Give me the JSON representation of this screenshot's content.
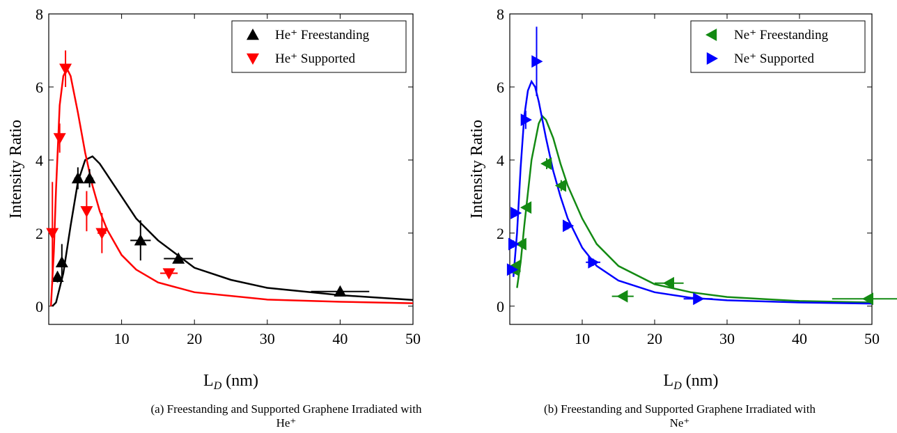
{
  "chart_data": [
    {
      "type": "scatter",
      "caption": "(a) Freestanding and Supported Graphene Irradiated with He⁺",
      "ylabel": "Intensity Ratio",
      "xlabel": {
        "main": "L",
        "sub": "D",
        "unit": "(nm)"
      },
      "xlim": [
        0,
        50
      ],
      "ylim": [
        -0.5,
        8
      ],
      "xticks": [
        10,
        20,
        30,
        40,
        50
      ],
      "yticks": [
        0,
        2,
        4,
        6,
        8
      ],
      "legend": "upper right",
      "series": [
        {
          "name": "He⁺ Freestanding",
          "color": "#000000",
          "marker": "up",
          "x": [
            1.2,
            1.8,
            4,
            5.6,
            12.6,
            17.8,
            40
          ],
          "values": [
            0.8,
            1.2,
            3.5,
            3.5,
            1.8,
            1.3,
            0.4
          ],
          "yerr": [
            0.15,
            0.5,
            0.3,
            0.25,
            0.55,
            0.1,
            0.1
          ],
          "xerr": [
            0.3,
            0.3,
            0.5,
            0.5,
            1.4,
            2,
            4
          ]
        },
        {
          "name": "He⁺ Supported",
          "color": "#ff0000",
          "marker": "down",
          "x": [
            0.5,
            1.5,
            2.3,
            5.2,
            7.3,
            16.5
          ],
          "values": [
            2.0,
            4.6,
            6.5,
            2.6,
            2.0,
            0.9
          ],
          "yerr": [
            1.4,
            0.4,
            0.5,
            0.55,
            0.55,
            0.12
          ],
          "xerr": [
            0.2,
            0.3,
            0.4,
            0.4,
            0.6,
            1.2
          ]
        }
      ],
      "fits": [
        {
          "color": "#000000",
          "x": [
            0.5,
            1,
            2,
            3,
            4,
            5,
            6,
            7,
            8,
            10,
            12,
            15,
            20,
            25,
            30,
            40,
            50
          ],
          "values": [
            0,
            0.1,
            0.9,
            2.2,
            3.4,
            4.0,
            4.1,
            3.9,
            3.6,
            3.0,
            2.4,
            1.8,
            1.05,
            0.72,
            0.5,
            0.3,
            0.17
          ]
        },
        {
          "color": "#ff0000",
          "x": [
            0.3,
            0.7,
            1,
            1.5,
            2,
            2.5,
            3,
            4,
            5,
            6,
            7,
            8,
            10,
            12,
            15,
            20,
            30,
            40,
            50
          ],
          "values": [
            0,
            1.5,
            3.2,
            5.5,
            6.3,
            6.5,
            6.3,
            5.3,
            4.2,
            3.3,
            2.6,
            2.1,
            1.4,
            1.0,
            0.65,
            0.38,
            0.18,
            0.12,
            0.08
          ]
        }
      ]
    },
    {
      "type": "scatter",
      "caption": "(b) Freestanding and Supported Graphene Irradiated with Ne⁺",
      "ylabel": "Intensity Ratio",
      "xlabel": {
        "main": "L",
        "sub": "D",
        "unit": "(nm)"
      },
      "xlim": [
        0,
        50
      ],
      "ylim": [
        -0.5,
        8
      ],
      "xticks": [
        10,
        20,
        30,
        40,
        50
      ],
      "yticks": [
        0,
        2,
        4,
        6,
        8
      ],
      "legend": "upper right",
      "series": [
        {
          "name": "Ne⁺ Freestanding",
          "color": "#138a13",
          "marker": "left",
          "x": [
            0.5,
            0.8,
            1.6,
            2.3,
            5.1,
            7.1,
            15.6,
            22,
            49.5
          ],
          "values": [
            1.0,
            1.1,
            1.7,
            2.7,
            3.9,
            3.3,
            0.27,
            0.63,
            0.2
          ],
          "yerr": [
            0.1,
            0.1,
            0.1,
            0.1,
            0.15,
            0.15,
            0.05,
            0.05,
            0.05
          ],
          "xerr": [
            0.2,
            0.3,
            0.4,
            0.4,
            0.5,
            0.7,
            1.5,
            2,
            5
          ]
        },
        {
          "name": "Ne⁺ Supported",
          "color": "#0000ff",
          "marker": "right",
          "x": [
            0.3,
            0.5,
            0.8,
            2.2,
            3.7,
            8,
            11.5,
            26
          ],
          "values": [
            1.0,
            1.7,
            2.55,
            5.1,
            6.7,
            2.2,
            1.2,
            0.2
          ],
          "yerr": [
            0.1,
            0.1,
            0.1,
            0.25,
            0.95,
            0.1,
            0.1,
            0.05
          ],
          "xerr": [
            0.2,
            0.2,
            0.3,
            0.3,
            0.3,
            0.7,
            1,
            2
          ]
        }
      ],
      "fits": [
        {
          "color": "#138a13",
          "x": [
            1,
            1.5,
            2,
            3,
            4,
            4.5,
            5,
            6,
            7,
            8,
            10,
            12,
            15,
            20,
            25,
            30,
            40,
            50
          ],
          "values": [
            0.5,
            1.2,
            2.2,
            4.0,
            5.0,
            5.2,
            5.1,
            4.6,
            3.9,
            3.3,
            2.4,
            1.7,
            1.1,
            0.6,
            0.38,
            0.25,
            0.14,
            0.1
          ]
        },
        {
          "color": "#0000ff",
          "x": [
            0.5,
            1,
            1.5,
            2,
            2.5,
            3,
            3.5,
            4,
            5,
            6,
            7,
            8,
            10,
            12,
            15,
            20,
            25,
            30,
            40,
            50
          ],
          "values": [
            0.8,
            2.0,
            3.8,
            5.2,
            5.9,
            6.15,
            6.0,
            5.6,
            4.6,
            3.7,
            3.0,
            2.4,
            1.6,
            1.1,
            0.7,
            0.38,
            0.23,
            0.16,
            0.1,
            0.07
          ]
        }
      ]
    }
  ]
}
